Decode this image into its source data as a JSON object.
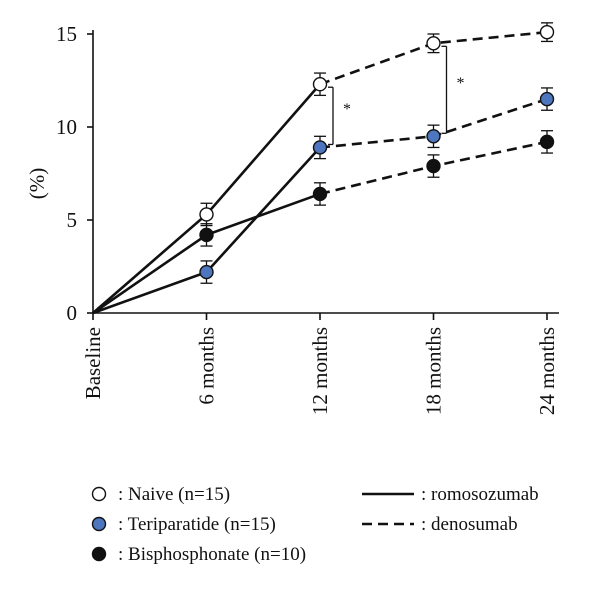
{
  "chart_data": {
    "type": "line",
    "ylabel": "(%)",
    "categories": [
      "Baseline",
      "6 months",
      "12 months",
      "18 months",
      "24 months"
    ],
    "ylim": [
      0,
      15
    ],
    "yticks": [
      0,
      5,
      10,
      15
    ],
    "grid": false,
    "segments": [
      {
        "from": "Baseline",
        "to": "12 months",
        "treatment": "romosozumab",
        "style": "solid"
      },
      {
        "from": "12 months",
        "to": "24 months",
        "treatment": "denosumab",
        "style": "dashed"
      }
    ],
    "series": [
      {
        "name": "Naive (n=15)",
        "marker": "open",
        "fill": "#ffffff",
        "values": [
          0,
          5.3,
          12.3,
          14.5,
          15.1
        ],
        "error": [
          null,
          0.6,
          0.6,
          0.5,
          0.5
        ]
      },
      {
        "name": "Teriparatide (n=15)",
        "marker": "filled",
        "fill": "#4e76bf",
        "values": [
          0,
          2.2,
          8.9,
          9.5,
          11.5
        ],
        "error": [
          null,
          0.6,
          0.6,
          0.6,
          0.6
        ]
      },
      {
        "name": "Bisphosphonate (n=10)",
        "marker": "filled",
        "fill": "#111111",
        "values": [
          0,
          4.2,
          6.4,
          7.9,
          9.2
        ],
        "error": [
          null,
          0.6,
          0.6,
          0.6,
          0.6
        ]
      }
    ],
    "significance": [
      {
        "category": "12 months",
        "between": [
          "Naive (n=15)",
          "Teriparatide (n=15)"
        ],
        "label": "*"
      },
      {
        "category": "18 months",
        "between": [
          "Naive (n=15)",
          "Teriparatide (n=15)"
        ],
        "label": "*"
      }
    ],
    "legend": {
      "placement": "bottom",
      "markers": [
        {
          "label": ": Naive (n=15)",
          "marker": "open",
          "fill": "#ffffff"
        },
        {
          "label": ": Teriparatide (n=15)",
          "marker": "filled",
          "fill": "#4e76bf"
        },
        {
          "label": ": Bisphosphonate (n=10)",
          "marker": "filled",
          "fill": "#111111"
        }
      ],
      "lines": [
        {
          "label": ": romosozumab",
          "style": "solid"
        },
        {
          "label": ": denosumab",
          "style": "dashed"
        }
      ]
    }
  }
}
